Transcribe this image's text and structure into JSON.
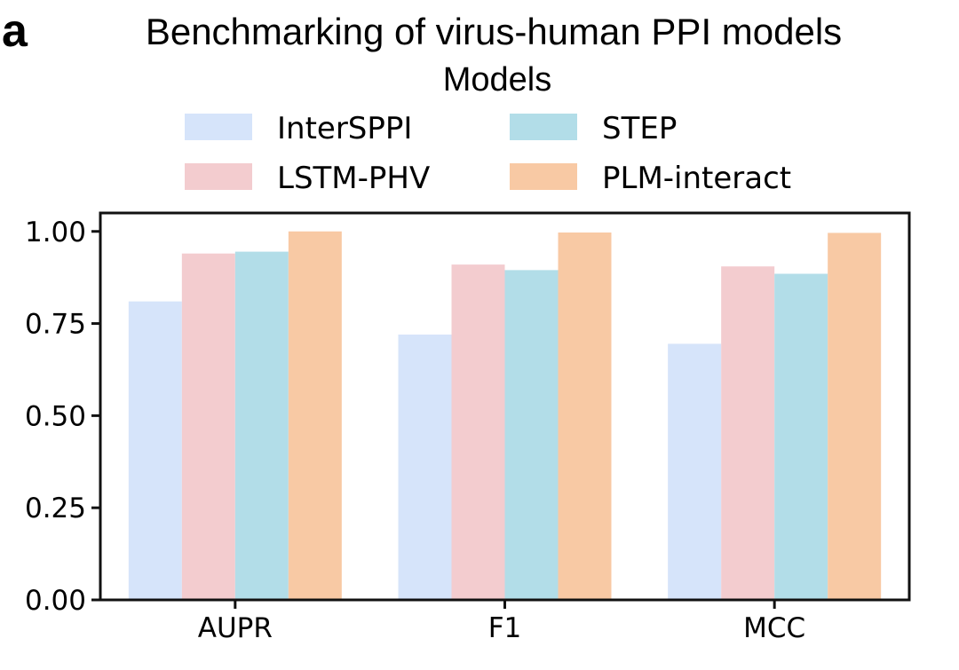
{
  "panel_label": "a",
  "chart_data": {
    "type": "bar",
    "title": "Benchmarking of virus-human PPI models",
    "legend_title": "Models",
    "legend_position": "top-center",
    "categories": [
      "AUPR",
      "F1",
      "MCC"
    ],
    "series": [
      {
        "name": "InterSPPI",
        "color": "#d6e4fa",
        "values": [
          0.81,
          0.72,
          0.695
        ]
      },
      {
        "name": "LSTM-PHV",
        "color": "#f3cccf",
        "values": [
          0.94,
          0.91,
          0.905
        ]
      },
      {
        "name": "STEP",
        "color": "#b2dde8",
        "values": [
          0.945,
          0.895,
          0.885
        ]
      },
      {
        "name": "PLM-interact",
        "color": "#f8c9a4",
        "values": [
          1.0,
          0.997,
          0.996
        ]
      }
    ],
    "ylim": [
      0,
      1.05
    ],
    "yticks": [
      0.0,
      0.25,
      0.5,
      0.75,
      1.0
    ],
    "ytick_labels": [
      "0.00",
      "0.25",
      "0.50",
      "0.75",
      "1.00"
    ],
    "xlabel": "",
    "ylabel": "",
    "grid": false
  }
}
